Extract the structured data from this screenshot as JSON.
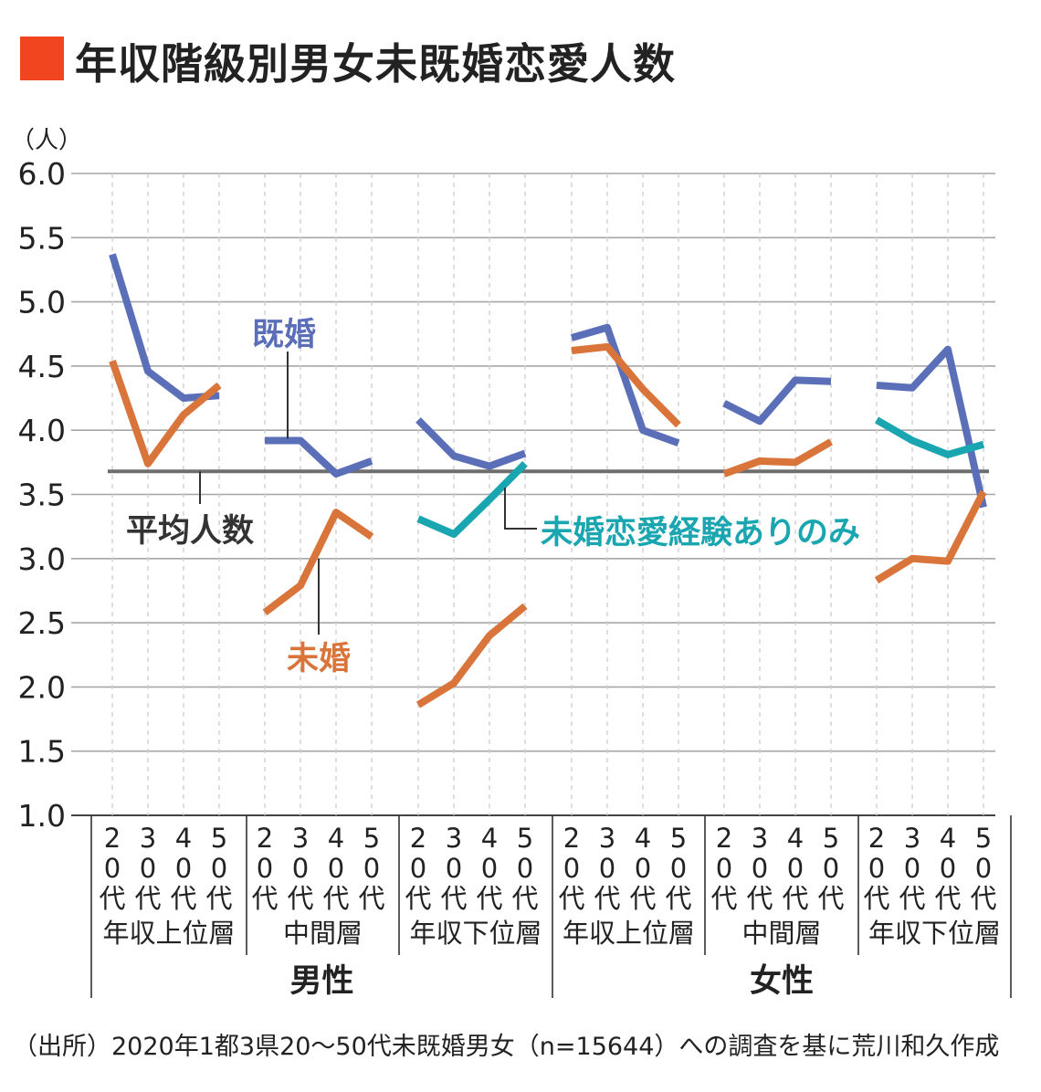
{
  "title": "年収階級別男女未既婚恋愛人数",
  "source": "（出所）2020年1都3県20〜50代未既婚男女（n=15644）への調査を基に荒川和久作成",
  "chart_data": {
    "type": "line",
    "unit_label": "（人）",
    "ylim": [
      1.0,
      6.0
    ],
    "yticks": [
      "1.0",
      "1.5",
      "2.0",
      "2.5",
      "3.0",
      "3.5",
      "4.0",
      "4.5",
      "5.0",
      "5.5",
      "6.0"
    ],
    "grid": true,
    "age_labels": [
      "20代",
      "30代",
      "40代",
      "50代"
    ],
    "groups": [
      {
        "gender": "男性",
        "income": "年収上位層"
      },
      {
        "gender": "男性",
        "income": "中間層"
      },
      {
        "gender": "男性",
        "income": "年収下位層"
      },
      {
        "gender": "女性",
        "income": "年収上位層"
      },
      {
        "gender": "女性",
        "income": "中間層"
      },
      {
        "gender": "女性",
        "income": "年収下位層"
      }
    ],
    "genders": [
      "男性",
      "女性"
    ],
    "average": {
      "label": "平均人数",
      "value": 3.68
    },
    "series": [
      {
        "name": "既婚",
        "color": "#5b6fb9",
        "values": [
          [
            5.37,
            4.46,
            4.25,
            4.27
          ],
          [
            3.92,
            3.92,
            3.66,
            3.76
          ],
          [
            4.08,
            3.8,
            3.72,
            3.82
          ],
          [
            4.72,
            4.8,
            4.0,
            3.9
          ],
          [
            4.21,
            4.07,
            4.39,
            4.38
          ],
          [
            4.35,
            4.33,
            4.63,
            3.4
          ]
        ]
      },
      {
        "name": "未婚",
        "color": "#d9753a",
        "values": [
          [
            4.54,
            3.74,
            4.12,
            4.35
          ],
          [
            2.58,
            2.79,
            3.36,
            3.17
          ],
          [
            1.86,
            2.03,
            2.4,
            2.63
          ],
          [
            4.62,
            4.65,
            4.32,
            4.04
          ],
          [
            3.66,
            3.76,
            3.75,
            3.91
          ],
          [
            2.83,
            3.0,
            2.98,
            3.52
          ]
        ]
      },
      {
        "name": "未婚恋愛経験ありのみ",
        "color": "#1aa6b0",
        "values": [
          null,
          null,
          [
            3.31,
            3.19,
            3.46,
            3.74
          ],
          null,
          null,
          [
            4.08,
            3.92,
            3.81,
            3.89
          ]
        ]
      }
    ]
  }
}
